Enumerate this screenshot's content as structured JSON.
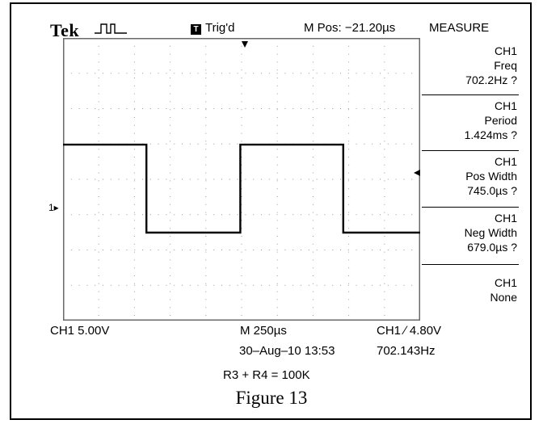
{
  "header": {
    "brand": "Tek",
    "trigger_badge": "T",
    "trigger_status": "Trig'd",
    "m_pos": "M Pos: −21.20µs",
    "menu_title": "MEASURE"
  },
  "measurements": [
    {
      "channel": "CH1",
      "name": "Freq",
      "value": "702.2Hz ?"
    },
    {
      "channel": "CH1",
      "name": "Period",
      "value": "1.424ms ?"
    },
    {
      "channel": "CH1",
      "name": "Pos Width",
      "value": "745.0µs ?"
    },
    {
      "channel": "CH1",
      "name": "Neg Width",
      "value": "679.0µs ?"
    },
    {
      "channel": "CH1",
      "name": "None",
      "value": ""
    }
  ],
  "markers": {
    "channel_ground": "1▸"
  },
  "footer": {
    "ch1_scale": "CH1  5.00V",
    "timebase": "M 250µs",
    "trigger_info": "CH1 ∕ 4.80V",
    "datetime": "30–Aug–10 13:53",
    "trigger_freq": "702.143Hz",
    "note": "R3 + R4 = 100K"
  },
  "caption": "Figure 13",
  "colors": {
    "trace": "#000000",
    "grid": "#9a9a9a",
    "background": "#ffffff"
  },
  "chart_data": {
    "type": "line",
    "series": [
      {
        "x": [
          0,
          1.28,
          1.28,
          2.72,
          2.72,
          4.3,
          4.3,
          5.48
        ],
        "y": [
          0.52,
          0.52,
          -0.8,
          -0.8,
          0.52,
          0.52,
          -0.8,
          -0.8
        ]
      }
    ],
    "xlim": [
      0,
      5.48
    ],
    "ylim": [
      -2.12,
      2.12
    ],
    "grid": true,
    "divisions": {
      "x": 10,
      "y": 8
    }
  }
}
